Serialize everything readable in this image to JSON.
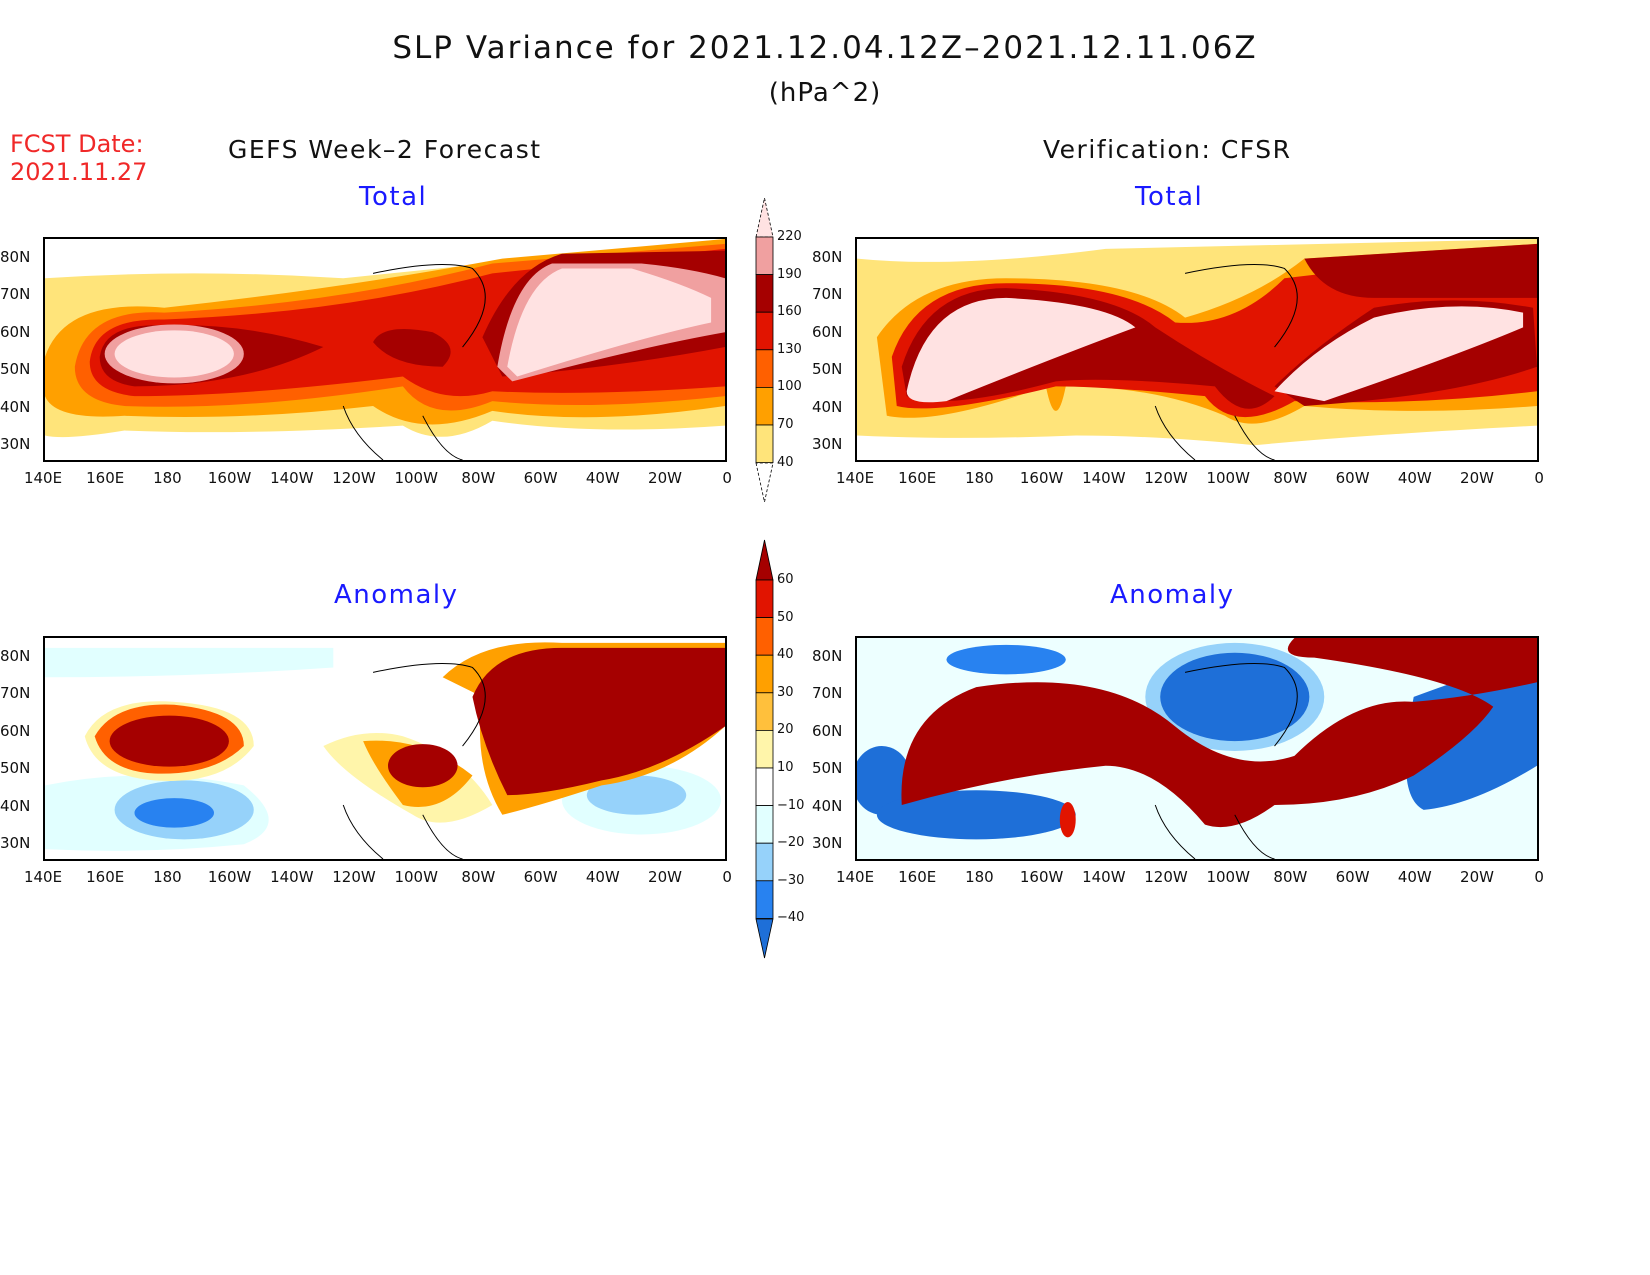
{
  "header": {
    "title": "SLP Variance for 2021.12.04.12Z–2021.12.11.06Z",
    "units": "(hPa^2)",
    "fcst_label": "FCST Date:",
    "fcst_date": "2021.11.27"
  },
  "columns": {
    "left": "GEFS Week–2 Forecast",
    "right": "Verification: CFSR"
  },
  "panels": {
    "total": "Total",
    "anomaly": "Anomaly"
  },
  "axes": {
    "lon": [
      "140E",
      "160E",
      "180",
      "160W",
      "140W",
      "120W",
      "100W",
      "80W",
      "60W",
      "40W",
      "20W",
      "0"
    ],
    "lat": [
      "80N",
      "70N",
      "60N",
      "50N",
      "40N",
      "30N"
    ]
  },
  "colorbar_total": {
    "labels": [
      "220",
      "190",
      "160",
      "130",
      "100",
      "70",
      "40"
    ],
    "colors": [
      "#ffe2e2",
      "#f0a0a0",
      "#a50000",
      "#e11400",
      "#ff6000",
      "#ffa000",
      "#ffe47a"
    ]
  },
  "colorbar_anomaly": {
    "labels": [
      "60",
      "50",
      "40",
      "30",
      "20",
      "10",
      "−10",
      "−20",
      "−30",
      "−40"
    ],
    "colors": [
      "#a50000",
      "#e11400",
      "#ff6000",
      "#ffa000",
      "#ffc03c",
      "#fff5aa",
      "#ffffff",
      "#e1ffff",
      "#96d2fa",
      "#2882f0",
      "#1e6fd8"
    ]
  }
}
